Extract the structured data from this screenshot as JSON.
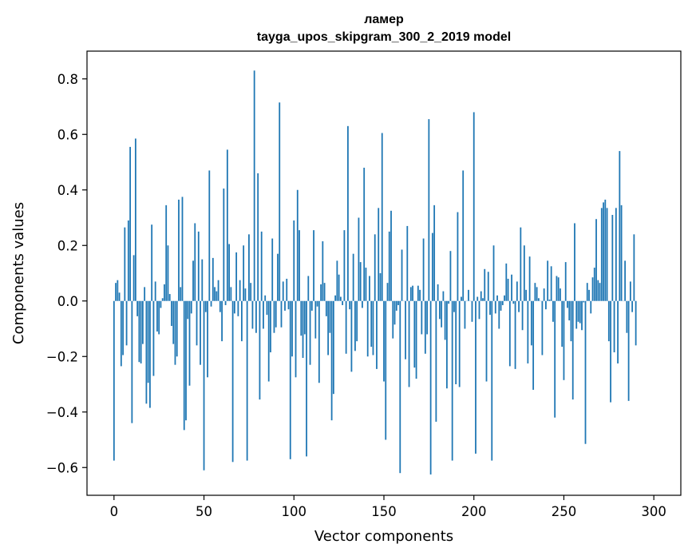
{
  "chart_data": {
    "type": "bar",
    "title": "ламер",
    "subtitle": "tayga_upos_skipgram_300_2_2019 model",
    "xlabel": "Vector components",
    "ylabel": "Components values",
    "xlim": [
      -15,
      315
    ],
    "ylim": [
      -0.7,
      0.9
    ],
    "xticks": [
      0,
      50,
      100,
      150,
      200,
      250,
      300
    ],
    "yticks": [
      -0.6,
      -0.4,
      -0.2,
      0.0,
      0.2,
      0.4,
      0.6,
      0.8
    ],
    "xtick_labels": [
      "0",
      "50",
      "100",
      "150",
      "200",
      "250",
      "300"
    ],
    "ytick_labels": [
      "−0.6",
      "−0.4",
      "−0.2",
      "0.0",
      "0.2",
      "0.4",
      "0.6",
      "0.8"
    ],
    "grid": false,
    "bar_color": "#1f77b4",
    "values": [
      -0.575,
      0.065,
      0.075,
      0.03,
      -0.235,
      -0.195,
      0.265,
      -0.16,
      0.29,
      0.555,
      -0.44,
      0.165,
      0.585,
      -0.055,
      -0.22,
      -0.225,
      -0.155,
      0.05,
      -0.37,
      -0.295,
      -0.385,
      0.275,
      -0.27,
      0.07,
      -0.11,
      -0.12,
      -0.025,
      0.01,
      0.06,
      0.345,
      0.2,
      0.025,
      -0.09,
      -0.155,
      -0.23,
      -0.2,
      0.365,
      0.05,
      0.375,
      -0.465,
      -0.43,
      -0.065,
      -0.305,
      -0.045,
      0.145,
      0.28,
      -0.16,
      0.25,
      -0.23,
      0.15,
      -0.61,
      -0.04,
      -0.275,
      0.47,
      -0.02,
      0.155,
      0.05,
      0.035,
      0.075,
      -0.04,
      -0.145,
      0.405,
      -0.015,
      0.545,
      0.205,
      0.05,
      -0.58,
      -0.045,
      0.175,
      -0.055,
      0.075,
      -0.145,
      0.2,
      0.045,
      -0.575,
      0.24,
      0.065,
      -0.1,
      0.83,
      -0.115,
      0.46,
      -0.355,
      0.25,
      -0.1,
      0.02,
      -0.05,
      -0.29,
      -0.185,
      0.225,
      -0.115,
      -0.095,
      0.17,
      0.715,
      -0.095,
      0.07,
      -0.035,
      0.08,
      -0.03,
      -0.57,
      -0.2,
      0.29,
      -0.275,
      0.4,
      0.255,
      -0.125,
      -0.205,
      -0.12,
      -0.56,
      0.09,
      -0.23,
      -0.035,
      0.255,
      -0.135,
      -0.02,
      -0.295,
      0.06,
      0.215,
      0.065,
      -0.055,
      -0.195,
      -0.115,
      -0.43,
      -0.335,
      0.02,
      0.145,
      0.095,
      0.015,
      -0.015,
      0.255,
      -0.19,
      0.63,
      -0.03,
      -0.255,
      0.17,
      -0.18,
      -0.145,
      0.3,
      0.14,
      -0.025,
      0.48,
      0.12,
      -0.2,
      0.09,
      -0.165,
      -0.195,
      0.24,
      -0.245,
      0.335,
      0.1,
      0.605,
      -0.29,
      -0.5,
      0.065,
      0.25,
      0.325,
      -0.135,
      -0.085,
      -0.035,
      -0.015,
      -0.62,
      0.185,
      0.0,
      -0.21,
      0.27,
      -0.31,
      0.05,
      0.055,
      -0.24,
      -0.28,
      0.055,
      0.04,
      -0.12,
      0.225,
      -0.19,
      -0.12,
      0.655,
      -0.625,
      0.245,
      0.345,
      -0.435,
      0.06,
      -0.065,
      -0.095,
      0.035,
      -0.14,
      -0.315,
      -0.01,
      0.18,
      -0.575,
      -0.04,
      -0.3,
      0.32,
      -0.31,
      0.015,
      0.47,
      -0.1,
      0.0,
      0.04,
      0.0,
      -0.075,
      0.68,
      -0.55,
      0.015,
      -0.065,
      0.035,
      0.01,
      0.115,
      -0.29,
      0.105,
      -0.05,
      -0.575,
      0.2,
      -0.045,
      0.02,
      -0.1,
      -0.035,
      -0.015,
      0.02,
      0.135,
      0.08,
      -0.235,
      0.095,
      -0.01,
      -0.245,
      0.07,
      -0.04,
      0.265,
      -0.105,
      0.2,
      0.04,
      -0.225,
      0.16,
      -0.16,
      -0.32,
      0.065,
      0.05,
      0.01,
      0.0,
      -0.195,
      0.045,
      -0.03,
      0.145,
      0.005,
      0.125,
      -0.075,
      -0.42,
      0.09,
      0.085,
      0.045,
      -0.165,
      -0.285,
      0.14,
      -0.025,
      -0.07,
      -0.145,
      -0.355,
      0.28,
      -0.1,
      -0.075,
      -0.08,
      -0.105,
      -0.005,
      -0.515,
      0.065,
      0.04,
      -0.045,
      0.085,
      0.12,
      0.295,
      0.075,
      0.065,
      0.335,
      0.355,
      0.365,
      0.335,
      -0.145,
      -0.365,
      0.31,
      -0.185,
      0.335,
      -0.225,
      0.54,
      0.345,
      0.0,
      0.145,
      -0.115,
      -0.36,
      0.07,
      -0.04,
      0.24,
      -0.16
    ]
  }
}
